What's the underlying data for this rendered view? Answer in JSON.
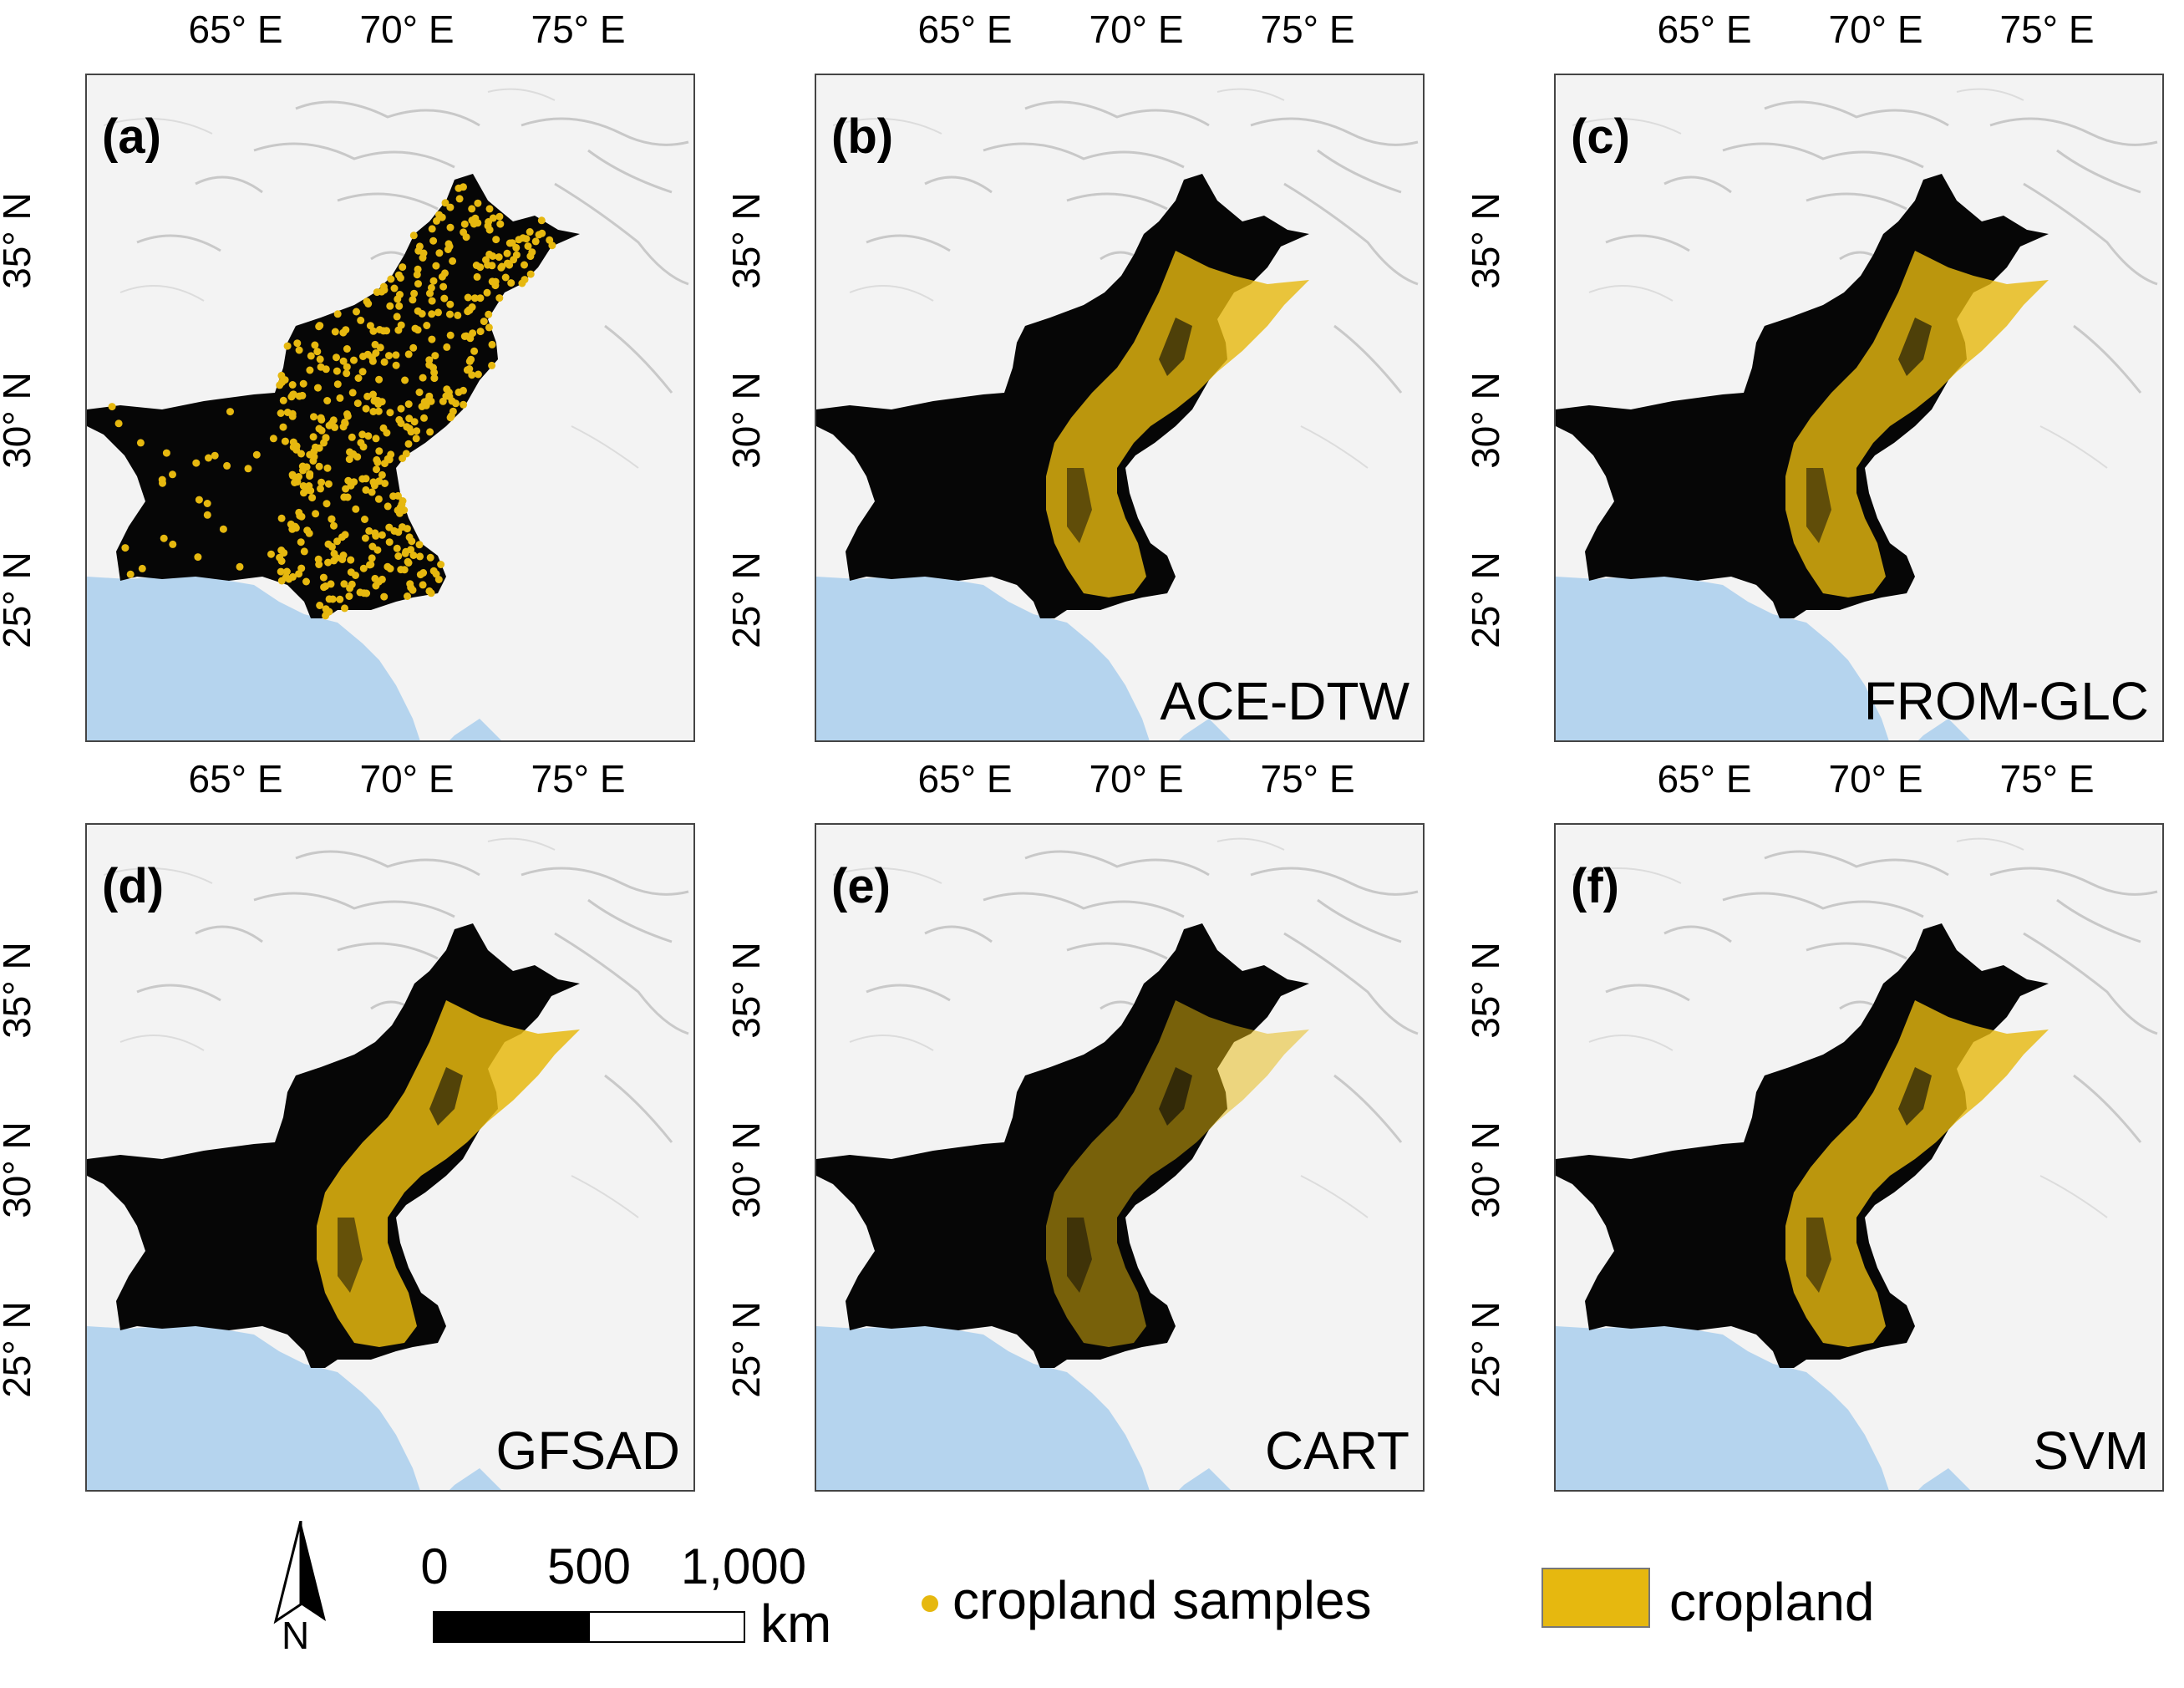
{
  "colors": {
    "cropland": "#e6b80f",
    "country": "#060606",
    "sea": "#b5d4ee",
    "terrain": "#f3f3f3",
    "relief": "#c9c9c9"
  },
  "axes": {
    "lon_labels": [
      "65° E",
      "70° E",
      "75° E"
    ],
    "lat_labels": [
      "35° N",
      "30° N",
      "25° N"
    ]
  },
  "panels": [
    {
      "id": "a",
      "letter": "(a)",
      "method": "",
      "style": "samples"
    },
    {
      "id": "b",
      "letter": "(b)",
      "method": "ACE-DTW",
      "style": "cropland"
    },
    {
      "id": "c",
      "letter": "(c)",
      "method": "FROM-GLC",
      "style": "cropland"
    },
    {
      "id": "d",
      "letter": "(d)",
      "method": "GFSAD",
      "style": "cropland"
    },
    {
      "id": "e",
      "letter": "(e)",
      "method": "CART",
      "style": "cropland"
    },
    {
      "id": "f",
      "letter": "(f)",
      "method": "SVM",
      "style": "cropland"
    }
  ],
  "legend": {
    "north_arrow_label": "N",
    "scale_values": [
      "0",
      "500",
      "1,000"
    ],
    "scale_unit": "km",
    "samples_label": "cropland samples",
    "cropland_label": "cropland"
  }
}
